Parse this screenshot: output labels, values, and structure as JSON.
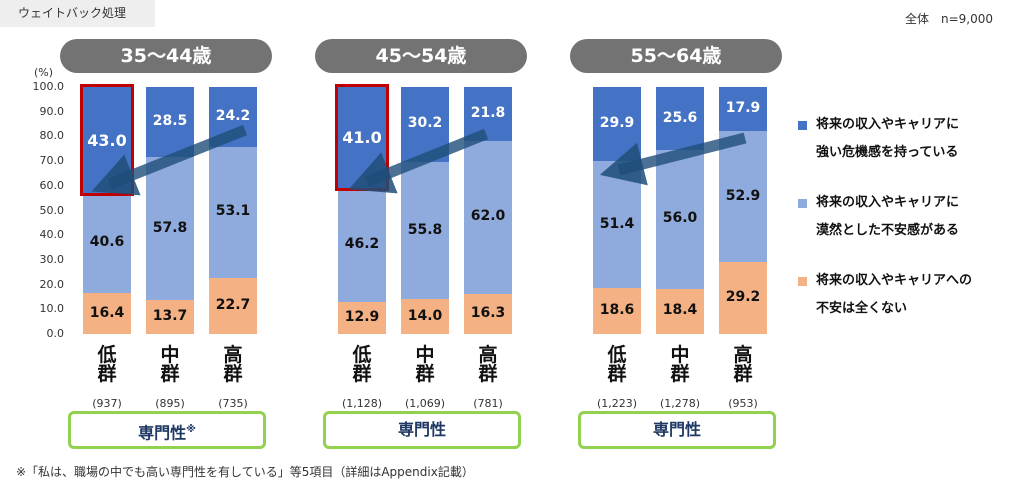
{
  "header": {
    "weight_label": "ウェイトバック処理",
    "sample_note": "全体　n=9,000"
  },
  "axis": {
    "unit": "(%)",
    "ticks": [
      "100.0",
      "90.0",
      "80.0",
      "70.0",
      "60.0",
      "50.0",
      "40.0",
      "30.0",
      "20.0",
      "10.0",
      "0.0"
    ]
  },
  "legend": [
    {
      "line1": "将来の収入やキャリアに",
      "line2": "強い危機感を持っている",
      "color": "#4472c4"
    },
    {
      "line1": "将来の収入やキャリアに",
      "line2": "漠然とした不安感がある",
      "color": "#8faadc"
    },
    {
      "line1": "将来の収入やキャリアへの",
      "line2": "不安は全くない",
      "color": "#f4b183"
    }
  ],
  "chart_data": [
    {
      "type": "bar",
      "stacked": true,
      "title": "35～44歳",
      "categories": [
        "低群",
        "中群",
        "高群"
      ],
      "n_labels": [
        "(937)",
        "(895)",
        "(735)"
      ],
      "segment_label": "専門性",
      "segment_mark": "※",
      "ylim": [
        0,
        100
      ],
      "series": [
        {
          "name": "不安は全くない",
          "values": [
            16.4,
            13.7,
            22.7
          ]
        },
        {
          "name": "漠然とした不安感がある",
          "values": [
            40.6,
            57.8,
            53.1
          ]
        },
        {
          "name": "強い危機感を持っている",
          "values": [
            43.0,
            28.5,
            24.2
          ]
        }
      ]
    },
    {
      "type": "bar",
      "stacked": true,
      "title": "45～54歳",
      "categories": [
        "低群",
        "中群",
        "高群"
      ],
      "n_labels": [
        "(1,128)",
        "(1,069)",
        "(781)"
      ],
      "segment_label": "専門性",
      "segment_mark": "",
      "ylim": [
        0,
        100
      ],
      "series": [
        {
          "name": "不安は全くない",
          "values": [
            12.9,
            14.0,
            16.3
          ]
        },
        {
          "name": "漠然とした不安感がある",
          "values": [
            46.2,
            55.8,
            62.0
          ]
        },
        {
          "name": "強い危機感を持っている",
          "values": [
            41.0,
            30.2,
            21.8
          ]
        }
      ]
    },
    {
      "type": "bar",
      "stacked": true,
      "title": "55～64歳",
      "categories": [
        "低群",
        "中群",
        "高群"
      ],
      "n_labels": [
        "(1,223)",
        "(1,278)",
        "(953)"
      ],
      "segment_label": "専門性",
      "segment_mark": "",
      "ylim": [
        0,
        100
      ],
      "series": [
        {
          "name": "不安は全くない",
          "values": [
            18.6,
            18.4,
            29.2
          ]
        },
        {
          "name": "漠然とした不安感がある",
          "values": [
            51.4,
            56.0,
            52.9
          ]
        },
        {
          "name": "強い危機感を持っている",
          "values": [
            29.9,
            25.6,
            17.9
          ]
        }
      ]
    }
  ],
  "footnote": "※「私は、職場の中でも高い専門性を有している」等5項目（詳細はAppendix記載）"
}
